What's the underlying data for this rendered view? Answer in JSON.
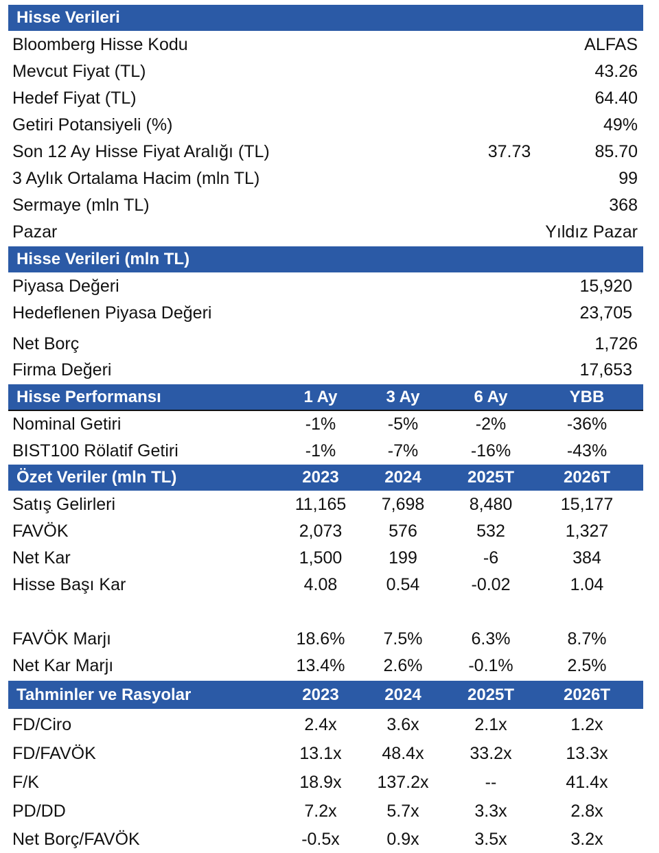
{
  "hisse_verileri": {
    "title": "Hisse Verileri",
    "rows": [
      {
        "label": "Bloomberg Hisse Kodu",
        "value": "ALFAS"
      },
      {
        "label": "Mevcut Fiyat (TL)",
        "value": "43.26"
      },
      {
        "label": "Hedef Fiyat (TL)",
        "value": "64.40"
      },
      {
        "label": "Getiri Potansiyeli (%)",
        "value": "49%"
      },
      {
        "label": "Son 12 Ay Hisse Fiyat Aralığı (TL)",
        "low": "37.73",
        "value": "85.70"
      },
      {
        "label": "3 Aylık Ortalama Hacim (mln TL)",
        "value": "99"
      },
      {
        "label": "Sermaye (mln TL)",
        "value": "368"
      },
      {
        "label": "Pazar",
        "value": "Yıldız Pazar"
      }
    ]
  },
  "hisse_verileri_mln": {
    "title": "Hisse Verileri (mln TL)",
    "rows": [
      {
        "label": "Piyasa Değeri",
        "value": "15,920"
      },
      {
        "label": "Hedeflenen Piyasa Değeri",
        "value": "23,705"
      },
      {
        "label": "Net Borç",
        "value": "1,726"
      },
      {
        "label": "Firma Değeri",
        "value": "17,653"
      }
    ]
  },
  "performans": {
    "title": "Hisse Performansı",
    "columns": [
      "1 Ay",
      "3 Ay",
      "6 Ay",
      "YBB"
    ],
    "rows": [
      {
        "label": "Nominal Getiri",
        "values": [
          "-1%",
          "-5%",
          "-2%",
          "-36%"
        ]
      },
      {
        "label": "BIST100 Rölatif Getiri",
        "values": [
          "-1%",
          "-7%",
          "-16%",
          "-43%"
        ]
      }
    ]
  },
  "ozet": {
    "title": "Özet Veriler (mln TL)",
    "columns": [
      "2023",
      "2024",
      "2025T",
      "2026T"
    ],
    "rows": [
      {
        "label": "Satış Gelirleri",
        "values": [
          "11,165",
          "7,698",
          "8,480",
          "15,177"
        ]
      },
      {
        "label": "FAVÖK",
        "values": [
          "2,073",
          "576",
          "532",
          "1,327"
        ]
      },
      {
        "label": "Net Kar",
        "values": [
          "1,500",
          "199",
          "-6",
          "384"
        ]
      },
      {
        "label": "Hisse Başı Kar",
        "values": [
          "4.08",
          "0.54",
          "-0.02",
          "1.04"
        ]
      },
      {
        "label": "FAVÖK Marjı",
        "values": [
          "18.6%",
          "7.5%",
          "6.3%",
          "8.7%"
        ]
      },
      {
        "label": "Net Kar Marjı",
        "values": [
          "13.4%",
          "2.6%",
          "-0.1%",
          "2.5%"
        ]
      }
    ]
  },
  "tahminler": {
    "title": "Tahminler ve Rasyolar",
    "columns": [
      "2023",
      "2024",
      "2025T",
      "2026T"
    ],
    "rows": [
      {
        "label": "FD/Ciro",
        "values": [
          "2.4x",
          "3.6x",
          "2.1x",
          "1.2x"
        ]
      },
      {
        "label": "FD/FAVÖK",
        "values": [
          "13.1x",
          "48.4x",
          "33.2x",
          "13.3x"
        ]
      },
      {
        "label": "F/K",
        "values": [
          "18.9x",
          "137.2x",
          "--",
          "41.4x"
        ]
      },
      {
        "label": "PD/DD",
        "values": [
          "7.2x",
          "5.7x",
          "3.3x",
          "2.8x"
        ]
      },
      {
        "label": "Net Borç/FAVÖK",
        "values": [
          "-0.5x",
          "0.9x",
          "3.5x",
          "3.2x"
        ]
      }
    ]
  }
}
